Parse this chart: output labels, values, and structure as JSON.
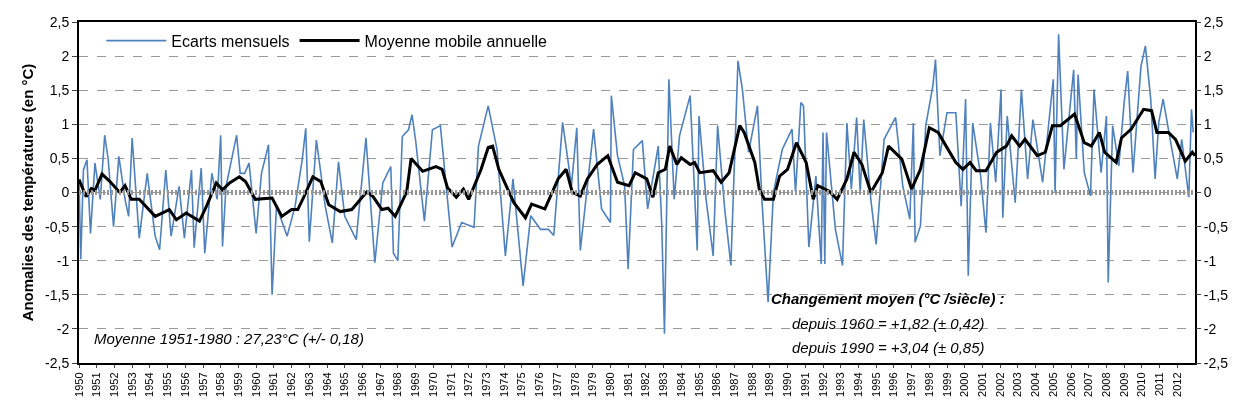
{
  "chart_data": {
    "type": "line",
    "ylabel": "Anomalies des températures (en °C)",
    "xlim": [
      1950,
      2013
    ],
    "xticks": [
      1950,
      1951,
      1952,
      1953,
      1954,
      1955,
      1956,
      1957,
      1958,
      1959,
      1960,
      1961,
      1962,
      1963,
      1964,
      1965,
      1966,
      1967,
      1968,
      1969,
      1970,
      1971,
      1972,
      1973,
      1974,
      1975,
      1976,
      1977,
      1978,
      1979,
      1980,
      1981,
      1982,
      1983,
      1984,
      1985,
      1986,
      1987,
      1988,
      1989,
      1990,
      1991,
      1992,
      1993,
      1994,
      1995,
      1996,
      1997,
      1998,
      1999,
      2000,
      2001,
      2002,
      2003,
      2004,
      2005,
      2006,
      2007,
      2008,
      2009,
      2010,
      2011,
      2012
    ],
    "ylim": [
      -2.5,
      2.5
    ],
    "yticks": [
      {
        "value": -2.5,
        "label": "-2,5"
      },
      -2,
      {
        "value": -1.5,
        "label": "-1,5"
      },
      -1,
      {
        "value": -0.5,
        "label": "-0,5"
      },
      0,
      {
        "value": 0.5,
        "label": "0,5"
      },
      1,
      {
        "value": 1.5,
        "label": "1,5"
      },
      2,
      {
        "value": 2.5,
        "label": "2,5"
      }
    ],
    "y2lim": [
      -2.5,
      2.5
    ],
    "y2ticks": [
      {
        "value": -2.5,
        "label": "-2,5"
      },
      -2,
      {
        "value": -1.5,
        "label": "-1,5"
      },
      -1,
      {
        "value": -0.5,
        "label": "-0,5"
      },
      0,
      {
        "value": 0.5,
        "label": "0,5"
      },
      1,
      {
        "value": 1.5,
        "label": "1,5"
      },
      2,
      {
        "value": 2.5,
        "label": "2,5"
      }
    ],
    "grid": "y",
    "legend": "top left",
    "line_style": "solid",
    "ref_lines": [
      {
        "axis": "y",
        "value": 0,
        "color": "#969696",
        "line_style": "dotted"
      }
    ],
    "annotations": [
      "Moyenne 1951-1980 : 27,23°C (+/- 0,18)",
      "Changement moyen (°C /siècle) :",
      "depuis 1960 = +1,82 (± 0,42)",
      "depuis 1990 = +3,04 (± 0,85)"
    ],
    "series": [
      {
        "name": "Ecarts mensuels",
        "color": "#4f81bd",
        "x": [
          1950.0,
          1950.1,
          1950.25,
          1950.45,
          1950.65,
          1950.9,
          1951.2,
          1951.45,
          1951.65,
          1951.95,
          1952.25,
          1952.6,
          1952.8,
          1953.0,
          1953.4,
          1953.85,
          1954.3,
          1954.55,
          1954.9,
          1955.2,
          1955.65,
          1955.95,
          1956.35,
          1956.5,
          1956.9,
          1957.1,
          1957.5,
          1957.8,
          1958.0,
          1958.1,
          1958.3,
          1958.9,
          1959.1,
          1959.35,
          1959.6,
          1960.0,
          1960.3,
          1960.7,
          1960.9,
          1961.15,
          1961.75,
          1962.2,
          1962.6,
          1962.8,
          1963.0,
          1963.4,
          1963.9,
          1964.3,
          1964.65,
          1965.0,
          1965.65,
          1966.2,
          1966.7,
          1967.15,
          1967.6,
          1967.75,
          1968.0,
          1968.25,
          1968.6,
          1968.8,
          1969.0,
          1969.5,
          1969.95,
          1970.4,
          1971.06,
          1971.6,
          1972.3,
          1972.55,
          1973.1,
          1973.6,
          1974.07,
          1974.5,
          1975.07,
          1975.5,
          1976.05,
          1976.5,
          1976.8,
          1977.3,
          1977.8,
          1978.1,
          1978.3,
          1979.05,
          1979.5,
          1980.0,
          1980.05,
          1980.4,
          1980.8,
          1981.0,
          1981.3,
          1981.8,
          1982.1,
          1982.7,
          1982.9,
          1983.05,
          1983.3,
          1983.6,
          1983.9,
          1984.5,
          1984.9,
          1985.0,
          1985.4,
          1985.8,
          1986.05,
          1986.45,
          1986.8,
          1987.2,
          1987.45,
          1987.8,
          1988.3,
          1988.55,
          1988.9,
          1989.2,
          1989.7,
          1990.25,
          1990.45,
          1990.75,
          1990.9,
          1991.2,
          1991.6,
          1991.9,
          1992.0,
          1992.1,
          1992.2,
          1992.7,
          1993.1,
          1993.35,
          1993.6,
          1993.9,
          1994.1,
          1994.3,
          1994.7,
          1995.0,
          1995.45,
          1996.1,
          1996.5,
          1996.9,
          1997.1,
          1997.2,
          1997.5,
          1997.8,
          1998.2,
          1998.35,
          1998.6,
          1999.0,
          1999.5,
          1999.8,
          2000.05,
          2000.2,
          2000.45,
          2000.9,
          2001.2,
          2001.45,
          2001.75,
          2002.05,
          2002.15,
          2002.4,
          2002.85,
          2003.2,
          2003.55,
          2003.85,
          2004.4,
          2005.0,
          2005.1,
          2005.3,
          2005.6,
          2006.15,
          2006.3,
          2006.4,
          2006.75,
          2007.1,
          2007.3,
          2007.7,
          2008.0,
          2008.1,
          2008.35,
          2008.7,
          2009.0,
          2009.2,
          2009.5,
          2009.95,
          2010.2,
          2010.5,
          2010.75,
          2010.95,
          2011.2,
          2011.7,
          2012.0,
          2012.25,
          2012.65,
          2012.8,
          2012.9
        ],
        "values": [
          0.19,
          -0.98,
          0.33,
          0.48,
          -0.6,
          0.43,
          -0.1,
          0.84,
          0.48,
          -0.5,
          0.53,
          -0.1,
          -0.35,
          0.8,
          -0.67,
          0.28,
          -0.64,
          -0.84,
          0.33,
          -0.64,
          0.09,
          -0.67,
          0.33,
          -0.81,
          0.36,
          -0.89,
          0.28,
          -0.1,
          0.84,
          -0.79,
          0.09,
          0.84,
          0.28,
          0.28,
          0.43,
          -0.6,
          0.28,
          0.7,
          -1.5,
          -0.2,
          -0.64,
          -0.2,
          0.48,
          0.94,
          -0.72,
          0.77,
          -0.2,
          -0.74,
          0.45,
          -0.35,
          -0.69,
          0.8,
          -1.03,
          0.14,
          0.38,
          -0.89,
          -1.0,
          0.82,
          0.92,
          1.14,
          0.77,
          -0.42,
          0.92,
          0.98,
          -0.8,
          -0.44,
          -0.51,
          0.68,
          1.27,
          0.63,
          -0.93,
          0.2,
          -1.37,
          -0.34,
          -0.54,
          -0.54,
          -0.63,
          1.03,
          0.1,
          0.95,
          -0.85,
          0.93,
          -0.24,
          -0.44,
          1.42,
          0.54,
          0.1,
          -1.12,
          0.63,
          0.76,
          -0.24,
          0.68,
          -0.49,
          -2.07,
          1.66,
          -0.1,
          0.83,
          1.42,
          -0.85,
          1.12,
          -0.1,
          -0.93,
          0.98,
          -0.24,
          -1.07,
          1.93,
          1.51,
          0.59,
          1.27,
          -0.1,
          -1.61,
          0.0,
          0.63,
          0.93,
          0.0,
          1.32,
          1.27,
          -0.8,
          0.24,
          -1.05,
          0.88,
          -1.05,
          0.88,
          -0.54,
          -1.07,
          1.02,
          0.05,
          1.1,
          0.0,
          1.07,
          -0.1,
          -0.76,
          0.78,
          1.1,
          0.1,
          -0.39,
          1.02,
          -0.73,
          -0.49,
          0.98,
          1.56,
          1.95,
          0.54,
          1.17,
          1.17,
          -0.2,
          1.37,
          -1.22,
          1.02,
          0.24,
          -0.59,
          1.02,
          0.15,
          1.51,
          -0.37,
          1.12,
          -0.15,
          1.51,
          0.2,
          1.07,
          0.15,
          1.66,
          0.0,
          2.32,
          0.34,
          1.8,
          0.49,
          1.73,
          0.29,
          -0.05,
          1.51,
          0.29,
          1.12,
          -1.32,
          0.98,
          0.39,
          1.32,
          1.78,
          0.29,
          1.85,
          2.15,
          1.37,
          0.2,
          1.02,
          1.37,
          0.63,
          0.2,
          0.78,
          -0.07,
          1.22,
          0.88
        ]
      },
      {
        "name": "Moyenne mobile annuelle",
        "color": "#000000",
        "x": [
          1950.0,
          1950.4,
          1950.7,
          1950.9,
          1951.3,
          1951.75,
          1952.3,
          1952.6,
          1952.95,
          1953.4,
          1954.3,
          1955.1,
          1955.5,
          1956.05,
          1956.8,
          1957.2,
          1957.75,
          1958.1,
          1958.5,
          1959.05,
          1959.4,
          1959.95,
          1960.9,
          1961.45,
          1962.0,
          1962.35,
          1962.7,
          1963.2,
          1963.65,
          1964.1,
          1964.75,
          1965.4,
          1966.25,
          1966.6,
          1967.1,
          1967.45,
          1967.85,
          1968.5,
          1968.75,
          1969.4,
          1970.15,
          1970.5,
          1970.8,
          1971.3,
          1971.7,
          1972.0,
          1972.35,
          1972.7,
          1973.1,
          1973.35,
          1973.7,
          1974.2,
          1974.55,
          1975.2,
          1975.55,
          1976.3,
          1977.05,
          1977.5,
          1977.85,
          1978.3,
          1978.7,
          1979.25,
          1979.85,
          1980.4,
          1981.05,
          1981.4,
          1982.05,
          1982.4,
          1982.7,
          1983.1,
          1983.35,
          1983.75,
          1984.0,
          1984.5,
          1984.75,
          1985.05,
          1985.8,
          1986.25,
          1986.7,
          1987.3,
          1987.55,
          1988.15,
          1988.4,
          1988.7,
          1989.2,
          1989.55,
          1990.0,
          1990.5,
          1991.05,
          1991.45,
          1991.7,
          1992.35,
          1992.8,
          1993.35,
          1993.75,
          1994.2,
          1994.7,
          1995.35,
          1995.7,
          1996.45,
          1997.0,
          1997.5,
          1998.0,
          1998.5,
          1998.95,
          1999.5,
          1999.9,
          2000.3,
          2000.65,
          2001.2,
          2001.8,
          2002.35,
          2002.65,
          2003.1,
          2003.4,
          2004.1,
          2004.55,
          2004.95,
          2005.4,
          2006.2,
          2006.75,
          2007.15,
          2007.6,
          2007.9,
          2008.55,
          2008.85,
          2009.4,
          2010.1,
          2010.55,
          2010.85,
          2011.5,
          2011.9,
          2012.45,
          2012.85,
          2013.0
        ],
        "values": [
          0.19,
          -0.06,
          0.06,
          0.03,
          0.27,
          0.16,
          0.0,
          0.1,
          -0.1,
          -0.1,
          -0.35,
          -0.25,
          -0.4,
          -0.3,
          -0.42,
          -0.2,
          0.14,
          0.04,
          0.14,
          0.23,
          0.16,
          -0.1,
          -0.08,
          -0.35,
          -0.25,
          -0.25,
          -0.06,
          0.23,
          0.16,
          -0.18,
          -0.28,
          -0.25,
          0.01,
          -0.06,
          -0.25,
          -0.23,
          -0.35,
          0.01,
          0.5,
          0.31,
          0.38,
          0.34,
          0.07,
          -0.07,
          0.05,
          -0.1,
          0.12,
          0.34,
          0.66,
          0.68,
          0.34,
          0.05,
          -0.15,
          -0.37,
          -0.17,
          -0.24,
          0.2,
          0.34,
          0.0,
          -0.05,
          0.2,
          0.41,
          0.54,
          0.15,
          0.1,
          0.29,
          0.2,
          -0.07,
          0.29,
          0.34,
          0.68,
          0.41,
          0.51,
          0.41,
          0.44,
          0.29,
          0.32,
          0.15,
          0.29,
          0.98,
          0.88,
          0.44,
          0.05,
          -0.1,
          -0.1,
          0.24,
          0.34,
          0.73,
          0.44,
          -0.1,
          0.1,
          0.02,
          -0.1,
          0.2,
          0.59,
          0.41,
          0.0,
          0.29,
          0.68,
          0.49,
          0.05,
          0.34,
          0.95,
          0.88,
          0.68,
          0.44,
          0.34,
          0.44,
          0.32,
          0.32,
          0.59,
          0.68,
          0.83,
          0.68,
          0.78,
          0.54,
          0.59,
          0.98,
          0.98,
          1.15,
          0.73,
          0.68,
          0.88,
          0.59,
          0.44,
          0.8,
          0.93,
          1.22,
          1.2,
          0.88,
          0.88,
          0.78,
          0.46,
          0.59,
          0.54
        ]
      }
    ]
  }
}
